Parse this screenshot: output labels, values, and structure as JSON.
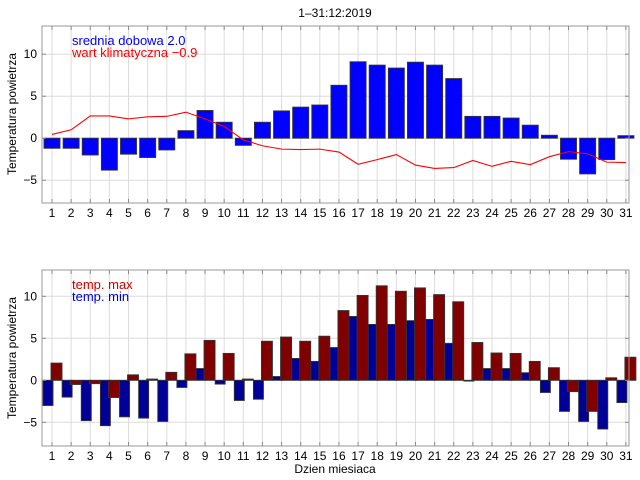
{
  "chart_data": [
    {
      "type": "bar",
      "title": "1–31:12:2019",
      "xlabel": "",
      "ylabel": "Temperatura powietrza",
      "ylim": [
        -8,
        13
      ],
      "xlim": [
        0.5,
        31.2
      ],
      "yticks": [
        {
          "value": -5,
          "label": "−5"
        },
        {
          "value": 0,
          "label": "0"
        },
        {
          "value": 5,
          "label": "5"
        },
        {
          "value": 10,
          "label": "10"
        }
      ],
      "grid": true,
      "categories": [
        "1",
        "2",
        "3",
        "4",
        "5",
        "6",
        "7",
        "8",
        "9",
        "10",
        "11",
        "12",
        "13",
        "14",
        "15",
        "16",
        "17",
        "18",
        "19",
        "20",
        "21",
        "22",
        "23",
        "24",
        "25",
        "26",
        "27",
        "28",
        "29",
        "30",
        "31"
      ],
      "series": [
        {
          "name": "srednia dobowa",
          "kind": "bar",
          "color": "#0000ff",
          "values": [
            -1.2,
            -1.2,
            -2.0,
            -3.8,
            -1.9,
            -2.3,
            -1.4,
            0.9,
            3.3,
            1.9,
            -0.85,
            1.9,
            3.25,
            3.7,
            3.95,
            6.3,
            9.1,
            8.7,
            8.35,
            9.05,
            8.7,
            7.1,
            2.6,
            2.6,
            2.4,
            1.55,
            0.35,
            -2.5,
            -4.25,
            -2.55,
            0.3
          ]
        },
        {
          "name": "wart klimatyczna",
          "kind": "line",
          "color": "#ff0000",
          "values": [
            0.45,
            1.0,
            2.65,
            2.65,
            2.3,
            2.55,
            2.6,
            3.1,
            2.3,
            1.4,
            -0.2,
            -0.9,
            -1.3,
            -1.35,
            -1.3,
            -1.65,
            -3.1,
            -2.55,
            -1.95,
            -3.2,
            -3.6,
            -3.5,
            -2.65,
            -3.35,
            -2.75,
            -3.15,
            -2.2,
            -1.6,
            -1.85,
            -2.85,
            -2.9
          ]
        }
      ],
      "legend": {
        "placement": "top-left",
        "entries": [
          {
            "text": "srednia dobowa 2.0",
            "color": "#0000ff"
          },
          {
            "text": "wart klimatyczna −0.9",
            "color": "#ff0000"
          }
        ]
      }
    },
    {
      "type": "bar",
      "title": "",
      "xlabel": "Dzien miesiaca",
      "ylabel": "Temperatura powietrza",
      "ylim": [
        -8,
        13
      ],
      "xlim": [
        0.5,
        31.2
      ],
      "yticks": [
        {
          "value": -5,
          "label": "−5"
        },
        {
          "value": 0,
          "label": "0"
        },
        {
          "value": 5,
          "label": "5"
        },
        {
          "value": 10,
          "label": "10"
        }
      ],
      "grid": true,
      "categories": [
        "1",
        "2",
        "3",
        "4",
        "5",
        "6",
        "7",
        "8",
        "9",
        "10",
        "11",
        "12",
        "13",
        "14",
        "15",
        "16",
        "17",
        "18",
        "19",
        "20",
        "21",
        "22",
        "23",
        "24",
        "25",
        "26",
        "27",
        "28",
        "29",
        "30",
        "31"
      ],
      "series": [
        {
          "name": "temp. min",
          "kind": "bar",
          "color": "#000099",
          "values": [
            -3.0,
            -2.0,
            -4.8,
            -5.4,
            -4.35,
            -4.5,
            -4.9,
            -0.85,
            1.4,
            -0.45,
            -2.4,
            -2.25,
            0.45,
            2.6,
            2.25,
            3.9,
            7.6,
            6.65,
            6.65,
            7.1,
            7.25,
            4.4,
            0.0,
            1.4,
            1.4,
            0.9,
            -1.45,
            -3.7,
            -4.9,
            -5.8,
            -2.65
          ]
        },
        {
          "name": "temp. max",
          "kind": "bar",
          "color": "#800000",
          "values": [
            2.05,
            -0.5,
            -0.4,
            -2.05,
            0.65,
            0.15,
            0.95,
            3.15,
            4.75,
            3.2,
            0.15,
            4.65,
            5.15,
            4.65,
            5.25,
            8.3,
            10.1,
            11.25,
            10.6,
            11.0,
            10.2,
            9.35,
            4.5,
            3.25,
            3.2,
            2.25,
            1.5,
            -1.35,
            -3.7,
            0.3,
            2.75
          ]
        }
      ],
      "legend": {
        "placement": "top-left",
        "entries": [
          {
            "text": "temp. max",
            "color": "#cc0000"
          },
          {
            "text": "temp. min",
            "color": "#0000cc"
          }
        ]
      }
    }
  ]
}
